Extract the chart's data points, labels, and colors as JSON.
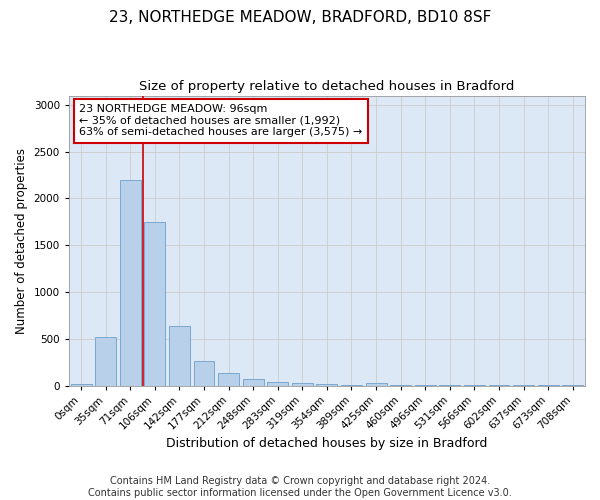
{
  "title1": "23, NORTHEDGE MEADOW, BRADFORD, BD10 8SF",
  "title2": "Size of property relative to detached houses in Bradford",
  "xlabel": "Distribution of detached houses by size in Bradford",
  "ylabel": "Number of detached properties",
  "bar_labels": [
    "0sqm",
    "35sqm",
    "71sqm",
    "106sqm",
    "142sqm",
    "177sqm",
    "212sqm",
    "248sqm",
    "283sqm",
    "319sqm",
    "354sqm",
    "389sqm",
    "425sqm",
    "460sqm",
    "496sqm",
    "531sqm",
    "566sqm",
    "602sqm",
    "637sqm",
    "673sqm",
    "708sqm"
  ],
  "bar_values": [
    20,
    520,
    2200,
    1750,
    635,
    265,
    130,
    75,
    40,
    30,
    15,
    5,
    30,
    5,
    5,
    5,
    5,
    5,
    5,
    5,
    5
  ],
  "bar_color": "#b8d0ea",
  "bar_edgecolor": "#6fa0cc",
  "annotation_text": "23 NORTHEDGE MEADOW: 96sqm\n← 35% of detached houses are smaller (1,992)\n63% of semi-detached houses are larger (3,575) →",
  "annotation_box_facecolor": "#ffffff",
  "annotation_box_edgecolor": "#cc0000",
  "vline_x": 2.5,
  "vline_color": "#cc0000",
  "ylim": [
    0,
    3100
  ],
  "yticks": [
    0,
    500,
    1000,
    1500,
    2000,
    2500,
    3000
  ],
  "grid_color": "#cccccc",
  "bg_color": "#dce8f5",
  "fig_bg_color": "#ffffff",
  "footer": "Contains HM Land Registry data © Crown copyright and database right 2024.\nContains public sector information licensed under the Open Government Licence v3.0.",
  "title1_fontsize": 11,
  "title2_fontsize": 9.5,
  "xlabel_fontsize": 9,
  "ylabel_fontsize": 8.5,
  "tick_fontsize": 7.5,
  "footer_fontsize": 7,
  "annot_fontsize": 8
}
